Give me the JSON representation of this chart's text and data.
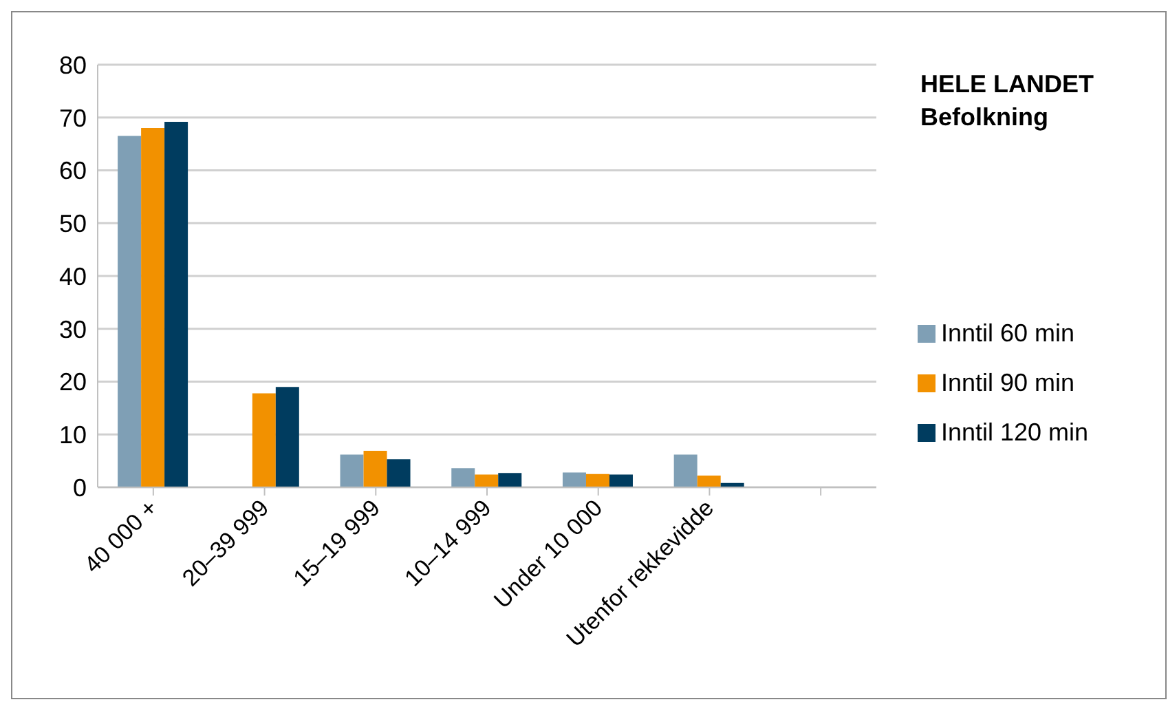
{
  "chart_data": {
    "type": "bar",
    "title": "HELE LANDET",
    "subtitle": "Befolkning",
    "categories": [
      "40 000 +",
      "20–39 999",
      "15–19 999",
      "10–14 999",
      "Under 10 000",
      "Utenfor rekkevidde",
      null
    ],
    "series": [
      {
        "name": "Inntil 60 min",
        "color": "#7f9fb5",
        "values": [
          66.5,
          null,
          6.2,
          3.6,
          2.8,
          6.2,
          null
        ]
      },
      {
        "name": "Inntil 90 min",
        "color": "#f29100",
        "values": [
          68,
          17.8,
          6.9,
          2.4,
          2.5,
          2.2,
          null
        ]
      },
      {
        "name": "Inntil 120 min",
        "color": "#003c5f",
        "values": [
          69.2,
          19,
          5.3,
          2.7,
          2.4,
          0.8,
          null
        ]
      }
    ],
    "ylim": [
      0,
      80
    ],
    "yticks": [
      0,
      10,
      20,
      30,
      40,
      50,
      60,
      70,
      80
    ],
    "grid": "y",
    "legend": "right"
  }
}
